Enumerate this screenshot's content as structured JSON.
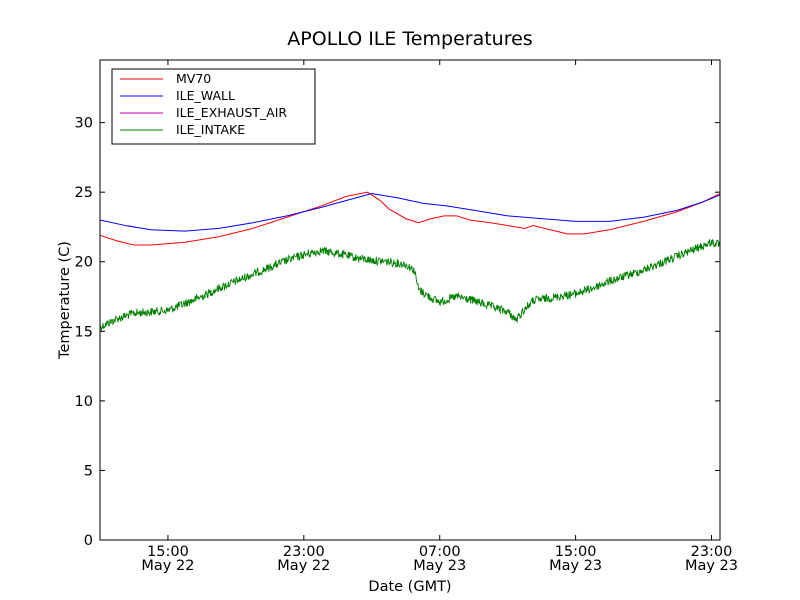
{
  "chart_data": {
    "type": "line",
    "title": "APOLLO ILE Temperatures",
    "xlabel": "Date (GMT)",
    "ylabel": "Temperature (C)",
    "ylim": [
      0,
      34.5
    ],
    "yticks": [
      0,
      5,
      10,
      15,
      20,
      25,
      30
    ],
    "xlim": [
      "2011-05-22T11:00",
      "2011-05-23T23:30"
    ],
    "xticks": [
      {
        "time": "2011-05-22T15:00",
        "line1": "15:00",
        "line2": "May 22"
      },
      {
        "time": "2011-05-22T23:00",
        "line1": "23:00",
        "line2": "May 22"
      },
      {
        "time": "2011-05-23T07:00",
        "line1": "07:00",
        "line2": "May 23"
      },
      {
        "time": "2011-05-23T15:00",
        "line1": "15:00",
        "line2": "May 23"
      },
      {
        "time": "2011-05-23T23:00",
        "line1": "23:00",
        "line2": "May 23"
      }
    ],
    "grid": false,
    "legend_position": "top-left",
    "series": [
      {
        "name": "MV70",
        "color": "#ff0000",
        "noise": 0,
        "points": [
          [
            "2011-05-22T11:00",
            21.9
          ],
          [
            "2011-05-22T12:00",
            21.5
          ],
          [
            "2011-05-22T13:00",
            21.2
          ],
          [
            "2011-05-22T14:00",
            21.2
          ],
          [
            "2011-05-22T16:00",
            21.4
          ],
          [
            "2011-05-22T18:00",
            21.8
          ],
          [
            "2011-05-22T20:00",
            22.4
          ],
          [
            "2011-05-22T22:00",
            23.2
          ],
          [
            "2011-05-23T00:00",
            24.0
          ],
          [
            "2011-05-23T01:30",
            24.7
          ],
          [
            "2011-05-23T02:45",
            25.0
          ],
          [
            "2011-05-23T03:30",
            24.4
          ],
          [
            "2011-05-23T04:00",
            23.8
          ],
          [
            "2011-05-23T05:00",
            23.1
          ],
          [
            "2011-05-23T05:45",
            22.8
          ],
          [
            "2011-05-23T06:30",
            23.1
          ],
          [
            "2011-05-23T07:15",
            23.3
          ],
          [
            "2011-05-23T08:00",
            23.3
          ],
          [
            "2011-05-23T08:45",
            23.0
          ],
          [
            "2011-05-23T10:00",
            22.8
          ],
          [
            "2011-05-23T11:30",
            22.5
          ],
          [
            "2011-05-23T12:00",
            22.4
          ],
          [
            "2011-05-23T12:30",
            22.6
          ],
          [
            "2011-05-23T13:30",
            22.3
          ],
          [
            "2011-05-23T14:30",
            22.0
          ],
          [
            "2011-05-23T15:30",
            22.0
          ],
          [
            "2011-05-23T17:00",
            22.3
          ],
          [
            "2011-05-23T19:00",
            22.9
          ],
          [
            "2011-05-23T21:00",
            23.6
          ],
          [
            "2011-05-23T22:30",
            24.3
          ],
          [
            "2011-05-23T23:30",
            24.9
          ]
        ]
      },
      {
        "name": "ILE_WALL",
        "color": "#0000ff",
        "noise": 0,
        "points": [
          [
            "2011-05-22T11:00",
            23.0
          ],
          [
            "2011-05-22T12:30",
            22.6
          ],
          [
            "2011-05-22T14:00",
            22.3
          ],
          [
            "2011-05-22T16:00",
            22.2
          ],
          [
            "2011-05-22T18:00",
            22.4
          ],
          [
            "2011-05-22T20:00",
            22.8
          ],
          [
            "2011-05-22T22:00",
            23.3
          ],
          [
            "2011-05-23T00:00",
            23.9
          ],
          [
            "2011-05-23T01:30",
            24.4
          ],
          [
            "2011-05-23T03:00",
            24.9
          ],
          [
            "2011-05-23T04:30",
            24.6
          ],
          [
            "2011-05-23T06:00",
            24.2
          ],
          [
            "2011-05-23T07:30",
            24.0
          ],
          [
            "2011-05-23T09:00",
            23.7
          ],
          [
            "2011-05-23T11:00",
            23.3
          ],
          [
            "2011-05-23T13:00",
            23.1
          ],
          [
            "2011-05-23T15:00",
            22.9
          ],
          [
            "2011-05-23T17:00",
            22.9
          ],
          [
            "2011-05-23T19:00",
            23.2
          ],
          [
            "2011-05-23T21:00",
            23.7
          ],
          [
            "2011-05-23T22:30",
            24.3
          ],
          [
            "2011-05-23T23:30",
            24.8
          ]
        ]
      },
      {
        "name": "ILE_EXHAUST_AIR",
        "color": "#bf00bf",
        "noise": 0,
        "points": []
      },
      {
        "name": "ILE_INTAKE",
        "color": "#008000",
        "noise": 0.3,
        "points": [
          [
            "2011-05-22T11:00",
            15.3
          ],
          [
            "2011-05-22T12:00",
            15.9
          ],
          [
            "2011-05-22T13:00",
            16.3
          ],
          [
            "2011-05-22T14:00",
            16.4
          ],
          [
            "2011-05-22T15:00",
            16.5
          ],
          [
            "2011-05-22T16:00",
            17.0
          ],
          [
            "2011-05-22T17:00",
            17.5
          ],
          [
            "2011-05-22T18:00",
            18.1
          ],
          [
            "2011-05-22T19:00",
            18.6
          ],
          [
            "2011-05-22T20:00",
            19.1
          ],
          [
            "2011-05-22T21:00",
            19.6
          ],
          [
            "2011-05-22T22:00",
            20.1
          ],
          [
            "2011-05-22T23:00",
            20.5
          ],
          [
            "2011-05-23T00:00",
            20.8
          ],
          [
            "2011-05-23T01:00",
            20.6
          ],
          [
            "2011-05-23T02:00",
            20.3
          ],
          [
            "2011-05-23T03:00",
            20.1
          ],
          [
            "2011-05-23T04:00",
            20.0
          ],
          [
            "2011-05-23T05:00",
            19.8
          ],
          [
            "2011-05-23T05:30",
            19.4
          ],
          [
            "2011-05-23T05:45",
            18.0
          ],
          [
            "2011-05-23T06:30",
            17.4
          ],
          [
            "2011-05-23T07:00",
            17.1
          ],
          [
            "2011-05-23T08:00",
            17.5
          ],
          [
            "2011-05-23T09:00",
            17.2
          ],
          [
            "2011-05-23T10:00",
            16.8
          ],
          [
            "2011-05-23T11:00",
            16.4
          ],
          [
            "2011-05-23T11:30",
            15.8
          ],
          [
            "2011-05-23T12:00",
            16.6
          ],
          [
            "2011-05-23T12:30",
            17.2
          ],
          [
            "2011-05-23T14:00",
            17.5
          ],
          [
            "2011-05-23T15:00",
            17.7
          ],
          [
            "2011-05-23T16:00",
            18.1
          ],
          [
            "2011-05-23T17:00",
            18.6
          ],
          [
            "2011-05-23T18:00",
            19.0
          ],
          [
            "2011-05-23T19:00",
            19.4
          ],
          [
            "2011-05-23T20:00",
            19.9
          ],
          [
            "2011-05-23T21:00",
            20.4
          ],
          [
            "2011-05-23T22:00",
            20.9
          ],
          [
            "2011-05-23T23:00",
            21.4
          ],
          [
            "2011-05-23T23:30",
            21.2
          ]
        ]
      }
    ]
  }
}
